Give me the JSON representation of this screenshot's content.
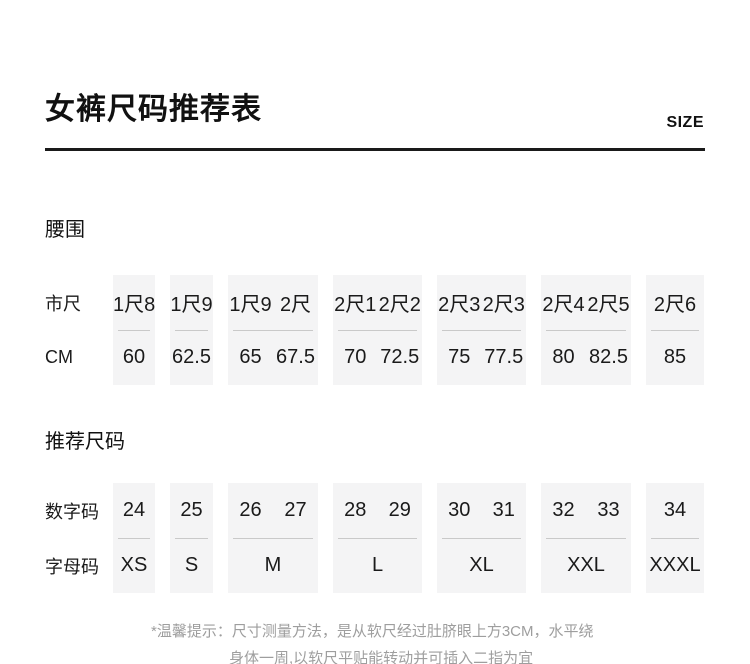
{
  "header": {
    "title": "女裤尺码推荐表",
    "size_label": "SIZE"
  },
  "waist": {
    "section_label": "腰围",
    "row1_label": "市尺",
    "row2_label": "CM",
    "columns": [
      {
        "shichi": [
          "1尺8"
        ],
        "cm": [
          "60"
        ]
      },
      {
        "shichi": [
          "1尺9"
        ],
        "cm": [
          "62.5"
        ]
      },
      {
        "shichi": [
          "1尺9",
          "2尺"
        ],
        "cm": [
          "65",
          "67.5"
        ]
      },
      {
        "shichi": [
          "2尺1",
          "2尺2"
        ],
        "cm": [
          "70",
          "72.5"
        ]
      },
      {
        "shichi": [
          "2尺3",
          "2尺3"
        ],
        "cm": [
          "75",
          "77.5"
        ]
      },
      {
        "shichi": [
          "2尺4",
          "2尺5"
        ],
        "cm": [
          "80",
          "82.5"
        ]
      },
      {
        "shichi": [
          "2尺6"
        ],
        "cm": [
          "85"
        ]
      }
    ]
  },
  "sizes": {
    "section_label": "推荐尺码",
    "row1_label": "数字码",
    "row2_label": "字母码",
    "columns": [
      {
        "numeric": [
          "24"
        ],
        "letter": "XS"
      },
      {
        "numeric": [
          "25"
        ],
        "letter": "S"
      },
      {
        "numeric": [
          "26",
          "27"
        ],
        "letter": "M"
      },
      {
        "numeric": [
          "28",
          "29"
        ],
        "letter": "L"
      },
      {
        "numeric": [
          "30",
          "31"
        ],
        "letter": "XL"
      },
      {
        "numeric": [
          "32",
          "33"
        ],
        "letter": "XXL"
      },
      {
        "numeric": [
          "34"
        ],
        "letter": "XXXL"
      }
    ]
  },
  "footer": {
    "note_line1": "*温馨提示：尺寸测量方法，是从软尺经过肚脐眼上方3CM，水平绕",
    "note_line2": "身体一周,以软尺平贴能转动并可插入二指为宜"
  },
  "colors": {
    "box_bg": "#f4f4f5",
    "box_divider": "#c9c9c9",
    "text": "#1a1a1a",
    "muted_text": "#9e9e9e",
    "title_rule": "#1a1a1a"
  }
}
